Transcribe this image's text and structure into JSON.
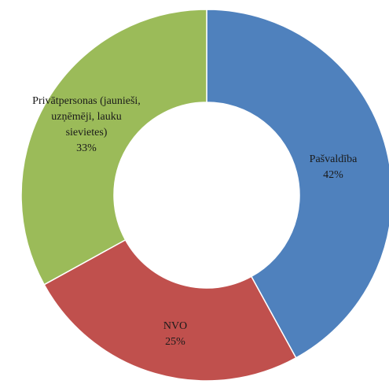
{
  "chart_data": {
    "type": "pie",
    "variant": "donut",
    "title": "",
    "start_angle_deg": 0,
    "direction": "clockwise",
    "slices": [
      {
        "label": "Pašvaldība",
        "value": 42,
        "value_label": "42%",
        "color": "#4f81bd"
      },
      {
        "label": "NVO",
        "value": 25,
        "value_label": "25%",
        "color": "#c0504d"
      },
      {
        "label": "Privātpersonas (jaunieši, uzņēmēji, lauku sievietes)",
        "value": 33,
        "value_label": "33%",
        "color": "#9bbb59"
      }
    ],
    "legend": "none"
  }
}
